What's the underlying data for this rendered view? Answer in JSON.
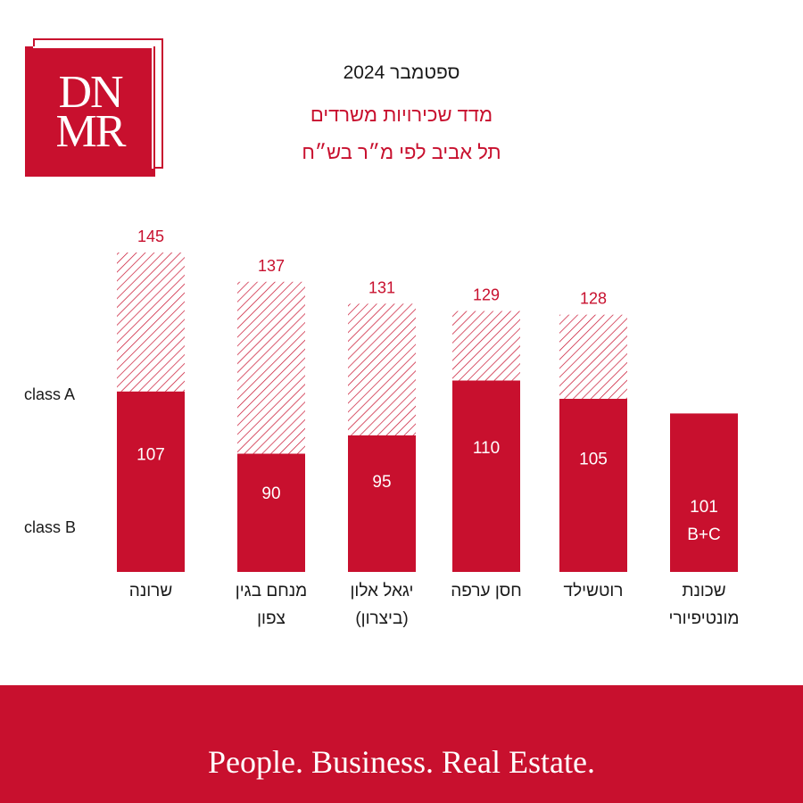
{
  "brand": {
    "logo_text": "DN\nMR",
    "tagline": "People. Business. Real Estate.",
    "accent_color": "#c8102e"
  },
  "header": {
    "date": "ספטמבר 2024",
    "title_line1": "מדד שכירויות משרדים",
    "title_line2": "תל אביב לפי מ״ר בש״ח"
  },
  "chart_data": {
    "type": "bar",
    "stacked_style": "class B solid, class A hatched",
    "row_labels": [
      "class A",
      "class B"
    ],
    "categories": [
      [
        "שרונה"
      ],
      [
        "מנחם בגין",
        "צפון"
      ],
      [
        "יגאל אלון",
        "(ביצרון)"
      ],
      [
        "חסן ערפה"
      ],
      [
        "רוטשילד"
      ],
      [
        "שכונת",
        "מונטיפיורי"
      ]
    ],
    "series": [
      {
        "name": "class B",
        "values": [
          107,
          90,
          95,
          110,
          105,
          101
        ],
        "labels": [
          "107",
          "90",
          "95",
          "110",
          "105",
          "101"
        ],
        "color": "#c8102e",
        "fill": "solid"
      },
      {
        "name": "class A",
        "values": [
          145,
          137,
          131,
          129,
          128,
          null
        ],
        "labels": [
          "145",
          "137",
          "131",
          "129",
          "128",
          ""
        ],
        "color": "#c8102e",
        "fill": "hatched"
      }
    ],
    "extra_labels": [
      "",
      "",
      "",
      "",
      "",
      "B+C"
    ],
    "legend": "left",
    "grid": false
  }
}
